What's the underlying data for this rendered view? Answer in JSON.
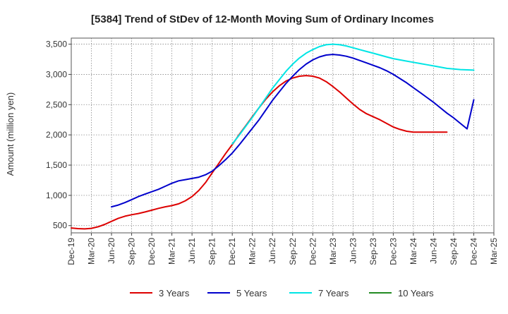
{
  "chart_data": {
    "type": "line",
    "title": "[5384]  Trend of StDev of 12-Month Moving Sum of Ordinary Incomes",
    "xlabel": "",
    "ylabel": "Amount (million yen)",
    "ylim": [
      380,
      3600
    ],
    "yticks": [
      500,
      1000,
      1500,
      2000,
      2500,
      3000,
      3500
    ],
    "ytick_labels": [
      "500",
      "1,000",
      "1,500",
      "2,000",
      "2,500",
      "3,000",
      "3,500"
    ],
    "grid": true,
    "legend_position": "bottom",
    "x_start_month": "2019-12",
    "x_end_month": "2025-03",
    "xtick_labels": [
      "Dec-19",
      "Mar-20",
      "Jun-20",
      "Sep-20",
      "Dec-20",
      "Mar-21",
      "Jun-21",
      "Sep-21",
      "Dec-21",
      "Mar-22",
      "Jun-22",
      "Sep-22",
      "Dec-22",
      "Mar-23",
      "Jun-23",
      "Sep-23",
      "Dec-23",
      "Mar-24",
      "Jun-24",
      "Sep-24",
      "Dec-24",
      "Mar-25"
    ],
    "series": [
      {
        "name": "3 Years",
        "color": "#dd0000",
        "points": [
          [
            "2019-12",
            460
          ],
          [
            "2020-01",
            450
          ],
          [
            "2020-02",
            445
          ],
          [
            "2020-03",
            455
          ],
          [
            "2020-04",
            480
          ],
          [
            "2020-05",
            520
          ],
          [
            "2020-06",
            570
          ],
          [
            "2020-07",
            620
          ],
          [
            "2020-08",
            655
          ],
          [
            "2020-09",
            680
          ],
          [
            "2020-10",
            700
          ],
          [
            "2020-11",
            725
          ],
          [
            "2020-12",
            755
          ],
          [
            "2021-01",
            785
          ],
          [
            "2021-02",
            810
          ],
          [
            "2021-03",
            830
          ],
          [
            "2021-04",
            860
          ],
          [
            "2021-05",
            910
          ],
          [
            "2021-06",
            980
          ],
          [
            "2021-07",
            1080
          ],
          [
            "2021-08",
            1210
          ],
          [
            "2021-09",
            1370
          ],
          [
            "2021-10",
            1530
          ],
          [
            "2021-11",
            1690
          ],
          [
            "2021-12",
            1840
          ],
          [
            "2022-01",
            2000
          ],
          [
            "2022-02",
            2150
          ],
          [
            "2022-03",
            2300
          ],
          [
            "2022-04",
            2450
          ],
          [
            "2022-05",
            2590
          ],
          [
            "2022-06",
            2710
          ],
          [
            "2022-07",
            2810
          ],
          [
            "2022-08",
            2890
          ],
          [
            "2022-09",
            2940
          ],
          [
            "2022-10",
            2970
          ],
          [
            "2022-11",
            2980
          ],
          [
            "2022-12",
            2970
          ],
          [
            "2023-01",
            2940
          ],
          [
            "2023-02",
            2880
          ],
          [
            "2023-03",
            2800
          ],
          [
            "2023-04",
            2710
          ],
          [
            "2023-05",
            2610
          ],
          [
            "2023-06",
            2510
          ],
          [
            "2023-07",
            2420
          ],
          [
            "2023-08",
            2350
          ],
          [
            "2023-09",
            2300
          ],
          [
            "2023-10",
            2250
          ],
          [
            "2023-11",
            2190
          ],
          [
            "2023-12",
            2130
          ],
          [
            "2024-01",
            2090
          ],
          [
            "2024-02",
            2060
          ],
          [
            "2024-03",
            2045
          ],
          [
            "2024-04",
            2045
          ],
          [
            "2024-05",
            2045
          ],
          [
            "2024-06",
            2045
          ],
          [
            "2024-07",
            2045
          ],
          [
            "2024-08",
            2045
          ]
        ]
      },
      {
        "name": "5 Years",
        "color": "#0000cc",
        "points": [
          [
            "2020-06",
            810
          ],
          [
            "2020-07",
            840
          ],
          [
            "2020-08",
            880
          ],
          [
            "2020-09",
            930
          ],
          [
            "2020-10",
            980
          ],
          [
            "2020-11",
            1020
          ],
          [
            "2020-12",
            1060
          ],
          [
            "2021-01",
            1100
          ],
          [
            "2021-02",
            1150
          ],
          [
            "2021-03",
            1200
          ],
          [
            "2021-04",
            1240
          ],
          [
            "2021-05",
            1260
          ],
          [
            "2021-06",
            1280
          ],
          [
            "2021-07",
            1300
          ],
          [
            "2021-08",
            1340
          ],
          [
            "2021-09",
            1400
          ],
          [
            "2021-10",
            1490
          ],
          [
            "2021-11",
            1590
          ],
          [
            "2021-12",
            1700
          ],
          [
            "2022-01",
            1830
          ],
          [
            "2022-02",
            1970
          ],
          [
            "2022-03",
            2110
          ],
          [
            "2022-04",
            2250
          ],
          [
            "2022-05",
            2410
          ],
          [
            "2022-06",
            2570
          ],
          [
            "2022-07",
            2710
          ],
          [
            "2022-08",
            2850
          ],
          [
            "2022-09",
            2970
          ],
          [
            "2022-10",
            3080
          ],
          [
            "2022-11",
            3170
          ],
          [
            "2022-12",
            3240
          ],
          [
            "2023-01",
            3290
          ],
          [
            "2023-02",
            3320
          ],
          [
            "2023-03",
            3330
          ],
          [
            "2023-04",
            3320
          ],
          [
            "2023-05",
            3300
          ],
          [
            "2023-06",
            3270
          ],
          [
            "2023-07",
            3230
          ],
          [
            "2023-08",
            3190
          ],
          [
            "2023-09",
            3150
          ],
          [
            "2023-10",
            3110
          ],
          [
            "2023-11",
            3060
          ],
          [
            "2023-12",
            3000
          ],
          [
            "2024-01",
            2930
          ],
          [
            "2024-02",
            2860
          ],
          [
            "2024-03",
            2780
          ],
          [
            "2024-04",
            2700
          ],
          [
            "2024-05",
            2620
          ],
          [
            "2024-06",
            2540
          ],
          [
            "2024-07",
            2450
          ],
          [
            "2024-08",
            2360
          ],
          [
            "2024-09",
            2280
          ],
          [
            "2024-10",
            2190
          ],
          [
            "2024-11",
            2100
          ],
          [
            "2024-12",
            2580
          ]
        ]
      },
      {
        "name": "7 Years",
        "color": "#00e5e5",
        "points": [
          [
            "2021-12",
            1850
          ],
          [
            "2022-01",
            1990
          ],
          [
            "2022-02",
            2140
          ],
          [
            "2022-03",
            2290
          ],
          [
            "2022-04",
            2450
          ],
          [
            "2022-05",
            2610
          ],
          [
            "2022-06",
            2770
          ],
          [
            "2022-07",
            2910
          ],
          [
            "2022-08",
            3050
          ],
          [
            "2022-09",
            3170
          ],
          [
            "2022-10",
            3270
          ],
          [
            "2022-11",
            3350
          ],
          [
            "2022-12",
            3410
          ],
          [
            "2023-01",
            3460
          ],
          [
            "2023-02",
            3490
          ],
          [
            "2023-03",
            3500
          ],
          [
            "2023-04",
            3490
          ],
          [
            "2023-05",
            3470
          ],
          [
            "2023-06",
            3440
          ],
          [
            "2023-07",
            3410
          ],
          [
            "2023-08",
            3380
          ],
          [
            "2023-09",
            3350
          ],
          [
            "2023-10",
            3320
          ],
          [
            "2023-11",
            3290
          ],
          [
            "2023-12",
            3260
          ],
          [
            "2024-01",
            3240
          ],
          [
            "2024-02",
            3220
          ],
          [
            "2024-03",
            3200
          ],
          [
            "2024-04",
            3180
          ],
          [
            "2024-05",
            3160
          ],
          [
            "2024-06",
            3140
          ],
          [
            "2024-07",
            3120
          ],
          [
            "2024-08",
            3100
          ],
          [
            "2024-09",
            3090
          ],
          [
            "2024-10",
            3080
          ],
          [
            "2024-11",
            3075
          ],
          [
            "2024-12",
            3070
          ]
        ]
      },
      {
        "name": "10 Years",
        "color": "#228b22",
        "points": []
      }
    ]
  }
}
